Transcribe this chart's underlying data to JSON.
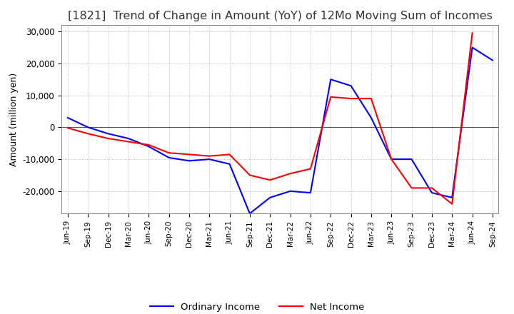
{
  "title": "[1821]  Trend of Change in Amount (YoY) of 12Mo Moving Sum of Incomes",
  "ylabel": "Amount (million yen)",
  "ylim": [
    -27000,
    32000
  ],
  "yticks": [
    -20000,
    -10000,
    0,
    10000,
    20000,
    30000
  ],
  "legend_labels": [
    "Ordinary Income",
    "Net Income"
  ],
  "line_colors": [
    "blue",
    "red"
  ],
  "dates": [
    "Jun-19",
    "Sep-19",
    "Dec-19",
    "Mar-20",
    "Jun-20",
    "Sep-20",
    "Dec-20",
    "Mar-21",
    "Jun-21",
    "Sep-21",
    "Dec-21",
    "Mar-22",
    "Jun-22",
    "Sep-22",
    "Dec-22",
    "Mar-23",
    "Jun-23",
    "Sep-23",
    "Dec-23",
    "Mar-24",
    "Jun-24",
    "Sep-24"
  ],
  "ordinary_income": [
    3000,
    0,
    -2000,
    -3500,
    -6000,
    -9500,
    -10500,
    -10000,
    -11500,
    -27000,
    -22000,
    -20000,
    -20500,
    15000,
    13000,
    3000,
    -10000,
    -10000,
    -20500,
    -22000,
    25000,
    21000
  ],
  "net_income": [
    -200,
    -2000,
    -3500,
    -4500,
    -5500,
    -8000,
    -8500,
    -9000,
    -8500,
    -15000,
    -16500,
    -14500,
    -13000,
    9500,
    9000,
    9000,
    -10000,
    -19000,
    -19000,
    -24000,
    29500,
    null
  ],
  "background_color": "#ffffff",
  "grid_color": "#aaaaaa",
  "title_fontsize": 11.5,
  "axis_fontsize": 9
}
